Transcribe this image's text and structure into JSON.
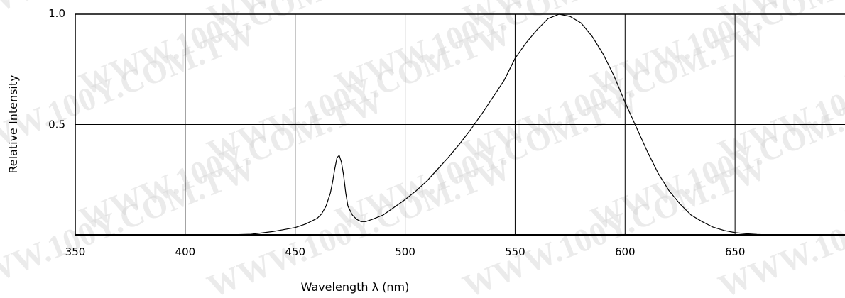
{
  "chart_data": {
    "type": "line",
    "xlabel": "Wavelength λ (nm)",
    "ylabel": "Relative Intensity",
    "xlim": [
      350,
      700
    ],
    "ylim": [
      0,
      1.0
    ],
    "x_ticks": [
      350,
      400,
      450,
      500,
      550,
      600,
      650
    ],
    "y_ticks": [
      0.5,
      1.0
    ],
    "y_tick_labels": [
      "0.5",
      "1.0"
    ],
    "grid": true,
    "series": [
      {
        "x": [
          350,
          380,
          400,
          420,
          430,
          440,
          450,
          455,
          460,
          462,
          464,
          466,
          467,
          468,
          469,
          470,
          471,
          472,
          473,
          474,
          476,
          478,
          480,
          482,
          485,
          490,
          495,
          500,
          505,
          510,
          515,
          520,
          525,
          530,
          535,
          540,
          545,
          550,
          555,
          560,
          565,
          570,
          575,
          580,
          585,
          590,
          595,
          600,
          605,
          610,
          615,
          620,
          625,
          630,
          635,
          640,
          645,
          650,
          655,
          660,
          665,
          670,
          680,
          700
        ],
        "y": [
          0,
          0,
          0,
          0,
          0.003,
          0.015,
          0.033,
          0.05,
          0.075,
          0.095,
          0.13,
          0.19,
          0.24,
          0.3,
          0.35,
          0.36,
          0.33,
          0.27,
          0.19,
          0.13,
          0.09,
          0.07,
          0.06,
          0.06,
          0.07,
          0.09,
          0.125,
          0.16,
          0.2,
          0.245,
          0.3,
          0.355,
          0.415,
          0.48,
          0.55,
          0.625,
          0.7,
          0.8,
          0.87,
          0.93,
          0.98,
          1.0,
          0.99,
          0.96,
          0.9,
          0.82,
          0.72,
          0.6,
          0.49,
          0.38,
          0.28,
          0.2,
          0.14,
          0.09,
          0.06,
          0.035,
          0.02,
          0.01,
          0.005,
          0.002,
          0,
          0,
          0,
          0
        ]
      }
    ]
  },
  "watermark": {
    "text": "WWW.100Y.COM.TW",
    "color": "#d4d4d4"
  }
}
